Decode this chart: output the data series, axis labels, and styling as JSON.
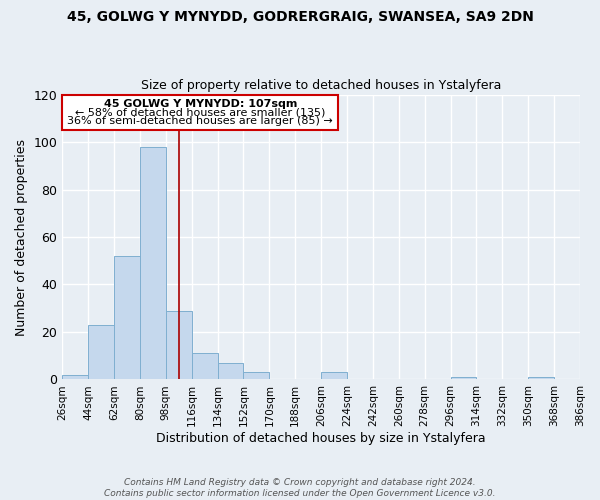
{
  "title": "45, GOLWG Y MYNYDD, GODRERGRAIG, SWANSEA, SA9 2DN",
  "subtitle": "Size of property relative to detached houses in Ystalyfera",
  "xlabel": "Distribution of detached houses by size in Ystalyfera",
  "ylabel": "Number of detached properties",
  "bin_edges": [
    26,
    44,
    62,
    80,
    98,
    116,
    134,
    152,
    170,
    188,
    206,
    224,
    242,
    260,
    278,
    296,
    314,
    332,
    350,
    368,
    386
  ],
  "bin_labels": [
    "26sqm",
    "44sqm",
    "62sqm",
    "80sqm",
    "98sqm",
    "116sqm",
    "134sqm",
    "152sqm",
    "170sqm",
    "188sqm",
    "206sqm",
    "224sqm",
    "242sqm",
    "260sqm",
    "278sqm",
    "296sqm",
    "314sqm",
    "332sqm",
    "350sqm",
    "368sqm",
    "386sqm"
  ],
  "bar_values": [
    2,
    23,
    52,
    98,
    29,
    11,
    7,
    3,
    0,
    0,
    3,
    0,
    0,
    0,
    0,
    1,
    0,
    0,
    1,
    0
  ],
  "bar_color": "#c5d8ed",
  "bar_edge_color": "#7fafd0",
  "marker_value": 107,
  "marker_color": "#aa0000",
  "ylim": [
    0,
    120
  ],
  "yticks": [
    0,
    20,
    40,
    60,
    80,
    100,
    120
  ],
  "annotation_title": "45 GOLWG Y MYNYDD: 107sqm",
  "annotation_line1": "← 58% of detached houses are smaller (135)",
  "annotation_line2": "36% of semi-detached houses are larger (85) →",
  "annotation_box_color": "#ffffff",
  "annotation_box_edge": "#cc0000",
  "footer_line1": "Contains HM Land Registry data © Crown copyright and database right 2024.",
  "footer_line2": "Contains public sector information licensed under the Open Government Licence v3.0.",
  "background_color": "#e8eef4",
  "grid_color": "#ffffff"
}
